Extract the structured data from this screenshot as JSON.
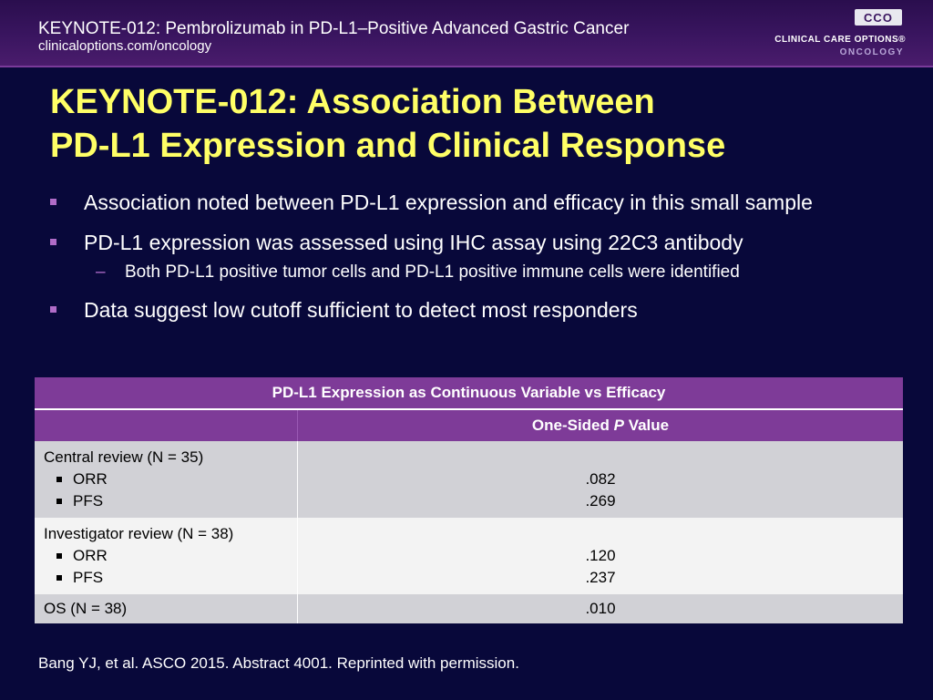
{
  "header": {
    "title": "KEYNOTE-012: Pembrolizumab in PD-L1–Positive Advanced Gastric Cancer",
    "url": "clinicaloptions.com/oncology",
    "logo_mark": "CCO",
    "logo_line1": "CLINICAL CARE OPTIONS®",
    "logo_line2": "ONCOLOGY"
  },
  "slide": {
    "title_line1": "KEYNOTE-012: Association Between",
    "title_line2": "PD-L1 Expression and Clinical Response",
    "bullets": [
      "Association noted between PD-L1 expression and efficacy in this small sample",
      "PD-L1 expression was assessed using IHC assay using 22C3 antibody",
      "Data suggest low cutoff sufficient to detect most responders"
    ],
    "sub_bullet": "Both PD-L1 positive tumor cells and PD-L1 positive immune cells were identified",
    "sub_dash": "–"
  },
  "table": {
    "title": "PD-L1 Expression as Continuous Variable vs Efficacy",
    "col_header_pre": "One-Sided ",
    "col_header_italic": "P",
    "col_header_post": " Value",
    "rows": [
      {
        "label": "Central review (N = 35)",
        "items": [
          {
            "name": "ORR",
            "value": ".082"
          },
          {
            "name": "PFS",
            "value": ".269"
          }
        ]
      },
      {
        "label": "Investigator review (N = 38)",
        "items": [
          {
            "name": "ORR",
            "value": ".120"
          },
          {
            "name": "PFS",
            "value": ".237"
          }
        ]
      },
      {
        "label": "OS (N = 38)",
        "value": ".010"
      }
    ]
  },
  "footnote": "Bang YJ, et al. ASCO 2015. Abstract 4001. Reprinted with permission.",
  "colors": {
    "background": "#08083a",
    "header_band": "#3a1560",
    "title": "#ffff66",
    "bullet_marker": "#b06cc8",
    "table_header": "#7e3b98",
    "row_dark": "#d1d1d6",
    "row_light": "#f3f3f3"
  }
}
